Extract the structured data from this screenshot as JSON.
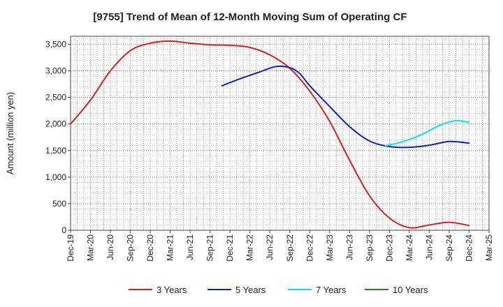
{
  "chart_data": {
    "type": "line",
    "title": "[9755]  Trend of Mean of 12-Month Moving Sum of Operating CF",
    "xlabel": "",
    "ylabel": "Amount (million yen)",
    "ylim": [
      0,
      3650
    ],
    "yticks": [
      0,
      500,
      1000,
      1500,
      2000,
      2500,
      3000,
      3500
    ],
    "ytick_labels": [
      "0",
      "500",
      "1,000",
      "1,500",
      "2,000",
      "2,500",
      "3,000",
      "3,500"
    ],
    "x_labels": [
      "Dec-19",
      "Mar-20",
      "Jun-20",
      "Sep-20",
      "Dec-20",
      "Mar-21",
      "Jun-21",
      "Sep-21",
      "Dec-21",
      "Mar-22",
      "Jun-22",
      "Sep-22",
      "Dec-22",
      "Mar-23",
      "Jun-23",
      "Sep-23",
      "Dec-23",
      "Mar-24",
      "Jun-24",
      "Sep-24",
      "Dec-24",
      "Mar-25"
    ],
    "grid": true,
    "legend_position": "bottom",
    "series": [
      {
        "name": "3 Years",
        "color": "#e31a1c",
        "points": [
          [
            0,
            2000
          ],
          [
            1,
            2450
          ],
          [
            2,
            3000
          ],
          [
            3,
            3380
          ],
          [
            4,
            3520
          ],
          [
            5,
            3560
          ],
          [
            6,
            3520
          ],
          [
            7,
            3490
          ],
          [
            8,
            3480
          ],
          [
            9,
            3440
          ],
          [
            10,
            3300
          ],
          [
            11,
            3050
          ],
          [
            12,
            2620
          ],
          [
            13,
            2050
          ],
          [
            14,
            1320
          ],
          [
            15,
            650
          ],
          [
            16,
            230
          ],
          [
            17,
            50
          ],
          [
            18,
            100
          ],
          [
            19,
            150
          ],
          [
            20,
            90
          ]
        ]
      },
      {
        "name": "5 Years",
        "color": "#0a1fd1",
        "points": [
          [
            7.6,
            2720
          ],
          [
            8.5,
            2850
          ],
          [
            9.5,
            2980
          ],
          [
            10.3,
            3080
          ],
          [
            11,
            3060
          ],
          [
            11.5,
            2950
          ],
          [
            12,
            2720
          ],
          [
            13,
            2330
          ],
          [
            14,
            1950
          ],
          [
            15,
            1680
          ],
          [
            16,
            1575
          ],
          [
            17,
            1560
          ],
          [
            18,
            1600
          ],
          [
            19,
            1670
          ],
          [
            20,
            1640
          ]
        ]
      },
      {
        "name": "7 Years",
        "color": "#00e5ee",
        "points": [
          [
            15.8,
            1590
          ],
          [
            16.5,
            1650
          ],
          [
            17.5,
            1780
          ],
          [
            18.5,
            1970
          ],
          [
            19.3,
            2060
          ],
          [
            20,
            2030
          ]
        ]
      },
      {
        "name": "10 Years",
        "color": "#1a8a1a",
        "points": []
      }
    ]
  }
}
